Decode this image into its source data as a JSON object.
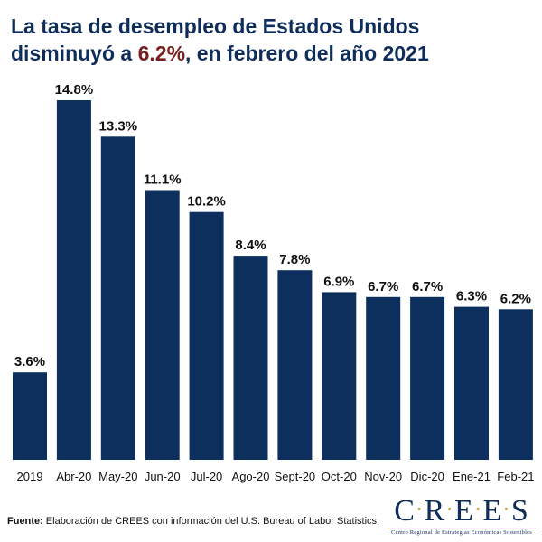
{
  "title": {
    "line1": "La tasa de desempleo de Estados Unidos",
    "line2_pre": "disminuyó a ",
    "line2_accent": "6.2%",
    "line2_post": ", en febrero del año 2021"
  },
  "colors": {
    "bar": "#0c2f5e",
    "title": "#0f2d5a",
    "accent": "#7a1f1f",
    "logo_gold": "#b8912a"
  },
  "chart_data": {
    "type": "bar",
    "categories": [
      "2019",
      "Abr-20",
      "May-20",
      "Jun-20",
      "Jul-20",
      "Ago-20",
      "Sept-20",
      "Oct-20",
      "Nov-20",
      "Dic-20",
      "Ene-21",
      "Feb-21"
    ],
    "values": [
      3.6,
      14.8,
      13.3,
      11.1,
      10.2,
      8.4,
      7.8,
      6.9,
      6.7,
      6.7,
      6.3,
      6.2
    ],
    "value_labels": [
      "3.6%",
      "14.8%",
      "13.3%",
      "11.1%",
      "10.2%",
      "8.4%",
      "7.8%",
      "6.9%",
      "6.7%",
      "6.7%",
      "6.3%",
      "6.2%"
    ],
    "ylim": [
      0,
      16
    ],
    "grid": false,
    "legend": "none"
  },
  "source": {
    "label": "Fuente:",
    "text": " Elaboración de CREES con información del U.S. Bureau of Labor Statistics."
  },
  "logo": {
    "letters": [
      "C",
      "R",
      "E",
      "E",
      "S"
    ],
    "subtitle": "Centro Regional de Estrategias Económicas Sostenibles"
  }
}
